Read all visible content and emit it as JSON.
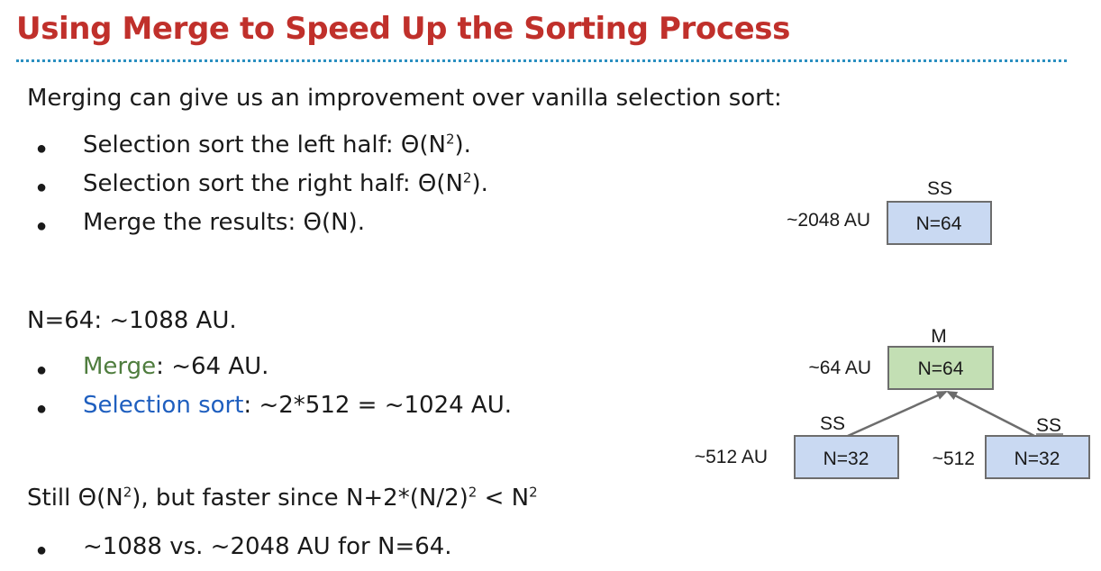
{
  "title": "Using Merge to Speed Up the Sorting Process",
  "colors": {
    "title": "#c0302b",
    "accent_green": "#4f7d3e",
    "accent_blue": "#1f5fbf",
    "box_blue": "#c9d9f2",
    "box_green": "#c3dfb4",
    "divider": "#2a8fc0"
  },
  "intro": "Merging can give us an improvement over vanilla selection sort:",
  "bullets1": [
    {
      "text": "Selection sort the left half: Θ(N",
      "sup": "2",
      "end": ")."
    },
    {
      "text": "Selection sort the right half: Θ(N",
      "sup": "2",
      "end": ")."
    },
    {
      "text": "Merge the results: Θ(N).",
      "sup": "",
      "end": ""
    }
  ],
  "n64_line": "N=64: ~1088 AU.",
  "bullets2": [
    {
      "colored": "Merge",
      "rest": ": ~64 AU."
    },
    {
      "colored": "Selection sort",
      "rest": ": ~2*512 = ~1024 AU."
    }
  ],
  "still_line": {
    "part1": "Still Θ(N",
    "sup1": "2",
    "part2": "), but faster since N+2*(N/2)",
    "sup2": "2",
    "part3": " < N",
    "sup3": "2"
  },
  "final_bullet": "~1088 vs. ~2048 AU for N=64.",
  "diagram": {
    "top": {
      "label": "SS",
      "cost": "~2048 AU",
      "box": "N=64"
    },
    "merge": {
      "label": "M",
      "cost": "~64 AU",
      "box": "N=64"
    },
    "left": {
      "label": "SS",
      "cost": "~512 AU",
      "box": "N=32"
    },
    "right": {
      "label": "SS",
      "cost": "~512",
      "box": "N=32"
    }
  }
}
